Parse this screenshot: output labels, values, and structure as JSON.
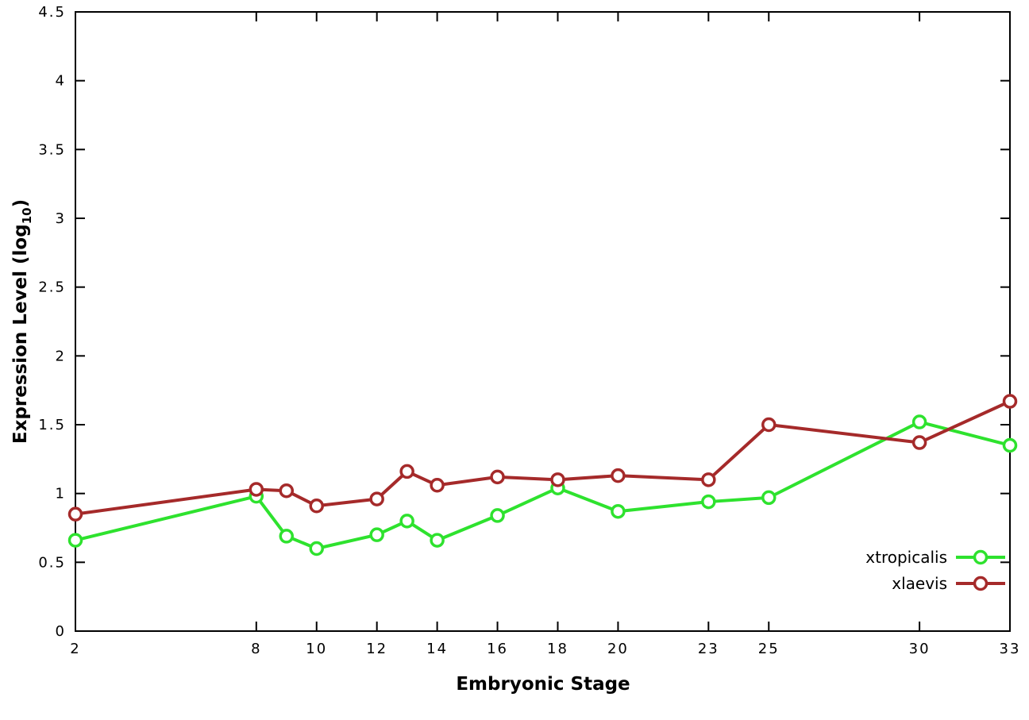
{
  "figure": {
    "background": "#ffffff",
    "border_color": "#000000"
  },
  "chart_data": {
    "type": "line",
    "title": "",
    "xlabel": "Embryonic Stage",
    "ylabel": "Expression Level (log10)",
    "ylabel_main": "Expression Level (log",
    "ylabel_subscript": "10",
    "ylabel_suffix": ")",
    "xlim": [
      2,
      33
    ],
    "ylim": [
      0,
      4.5
    ],
    "x_ticks": [
      2,
      8,
      10,
      12,
      14,
      16,
      18,
      20,
      23,
      25,
      30,
      33
    ],
    "y_ticks": [
      0,
      0.5,
      1,
      1.5,
      2,
      2.5,
      3,
      3.5,
      4,
      4.5
    ],
    "grid": false,
    "legend_position": "bottom-right-inside",
    "x": [
      2,
      8,
      9,
      10,
      12,
      13,
      14,
      16,
      18,
      20,
      23,
      25,
      30,
      33
    ],
    "series": [
      {
        "name": "xtropicalis",
        "color": "#2ee22e",
        "marker": "open-circle",
        "values": [
          0.66,
          0.98,
          0.69,
          0.6,
          0.7,
          0.8,
          0.66,
          0.84,
          1.04,
          0.87,
          0.94,
          0.97,
          1.52,
          1.35
        ]
      },
      {
        "name": "xlaevis",
        "color": "#a52a2a",
        "marker": "open-circle",
        "values": [
          0.85,
          1.03,
          1.02,
          0.91,
          0.96,
          1.16,
          1.06,
          1.12,
          1.1,
          1.13,
          1.1,
          1.5,
          1.37,
          1.67
        ]
      }
    ]
  }
}
